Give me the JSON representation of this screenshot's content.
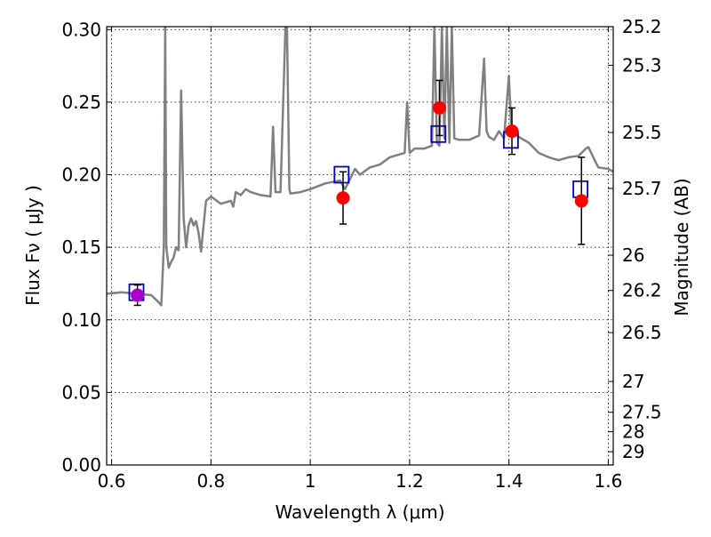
{
  "chart_data": {
    "type": "scatter",
    "title": "",
    "xlabel": "Wavelength  λ (μm)",
    "ylabel": "Flux  Fν  ( μJy )",
    "y2label": "Magnitude (AB)",
    "xlim": [
      0.59,
      1.61
    ],
    "ylim": [
      0.0,
      0.302
    ],
    "grid": true,
    "legend": "none",
    "x_ticks": [
      0.6,
      0.8,
      1.0,
      1.2,
      1.4,
      1.6
    ],
    "x_tick_labels": [
      "0.6",
      "0.8",
      "1",
      "1.2",
      "1.4",
      "1.6"
    ],
    "y_ticks": [
      0.0,
      0.05,
      0.1,
      0.15,
      0.2,
      0.25,
      0.3
    ],
    "y_tick_labels": [
      "0.00",
      "0.05",
      "0.10",
      "0.15",
      "0.20",
      "0.25",
      "0.30"
    ],
    "y2_ticks": [
      25.2,
      25.3,
      25.5,
      25.7,
      26,
      26.2,
      26.5,
      27,
      27.5,
      28,
      29
    ],
    "y2_tick_labels": [
      "25.2",
      "25.3",
      "25.5",
      "25.7",
      "26",
      "26.2",
      "26.5",
      "27",
      "27.5",
      "28",
      "29"
    ],
    "colors": {
      "model": "#808080",
      "model_photometry": "#0000cc",
      "observed": "#ff0000",
      "observed_overlap": "#aa00cc",
      "errorbar": "#000000"
    },
    "series": [
      {
        "kind": "line",
        "x": [
          0.59,
          0.62,
          0.65,
          0.68,
          0.695,
          0.7,
          0.705,
          0.708,
          0.71,
          0.715,
          0.72,
          0.725,
          0.73,
          0.735,
          0.74,
          0.745,
          0.75,
          0.755,
          0.76,
          0.765,
          0.77,
          0.775,
          0.78,
          0.79,
          0.8,
          0.82,
          0.84,
          0.845,
          0.85,
          0.86,
          0.87,
          0.88,
          0.9,
          0.92,
          0.925,
          0.93,
          0.94,
          0.95,
          0.953,
          0.958,
          0.96,
          0.98,
          1.0,
          1.03,
          1.06,
          1.07,
          1.08,
          1.09,
          1.1,
          1.12,
          1.14,
          1.16,
          1.18,
          1.19,
          1.195,
          1.2,
          1.21,
          1.23,
          1.245,
          1.25,
          1.255,
          1.26,
          1.265,
          1.27,
          1.275,
          1.28,
          1.285,
          1.29,
          1.3,
          1.32,
          1.34,
          1.35,
          1.355,
          1.36,
          1.37,
          1.38,
          1.39,
          1.4,
          1.405,
          1.41,
          1.42,
          1.44,
          1.46,
          1.48,
          1.5,
          1.52,
          1.54,
          1.555,
          1.56,
          1.57,
          1.58,
          1.6,
          1.61
        ],
        "y": [
          0.118,
          0.119,
          0.118,
          0.117,
          0.112,
          0.11,
          0.15,
          0.302,
          0.15,
          0.136,
          0.14,
          0.143,
          0.15,
          0.148,
          0.258,
          0.17,
          0.15,
          0.165,
          0.17,
          0.165,
          0.168,
          0.16,
          0.147,
          0.182,
          0.185,
          0.18,
          0.182,
          0.178,
          0.188,
          0.186,
          0.19,
          0.188,
          0.186,
          0.185,
          0.233,
          0.188,
          0.188,
          0.302,
          0.302,
          0.19,
          0.187,
          0.188,
          0.19,
          0.194,
          0.196,
          0.19,
          0.197,
          0.204,
          0.2,
          0.205,
          0.207,
          0.212,
          0.214,
          0.215,
          0.25,
          0.215,
          0.218,
          0.218,
          0.22,
          0.302,
          0.222,
          0.22,
          0.302,
          0.225,
          0.302,
          0.222,
          0.302,
          0.225,
          0.224,
          0.224,
          0.227,
          0.28,
          0.23,
          0.226,
          0.224,
          0.23,
          0.225,
          0.268,
          0.23,
          0.228,
          0.226,
          0.222,
          0.215,
          0.212,
          0.21,
          0.212,
          0.213,
          0.218,
          0.219,
          0.212,
          0.205,
          0.204,
          0.202
        ]
      },
      {
        "kind": "marker",
        "marker": "square",
        "x": [
          0.65,
          1.063,
          1.258,
          1.404,
          1.544
        ],
        "y": [
          0.119,
          0.2,
          0.228,
          0.224,
          0.19
        ]
      },
      {
        "kind": "marker",
        "marker": "circle",
        "x": [
          0.652,
          1.066,
          1.26,
          1.406,
          1.546
        ],
        "y": [
          0.117,
          0.184,
          0.246,
          0.23,
          0.182
        ],
        "yerr": [
          0.007,
          0.018,
          0.019,
          0.016,
          0.03
        ]
      }
    ]
  }
}
